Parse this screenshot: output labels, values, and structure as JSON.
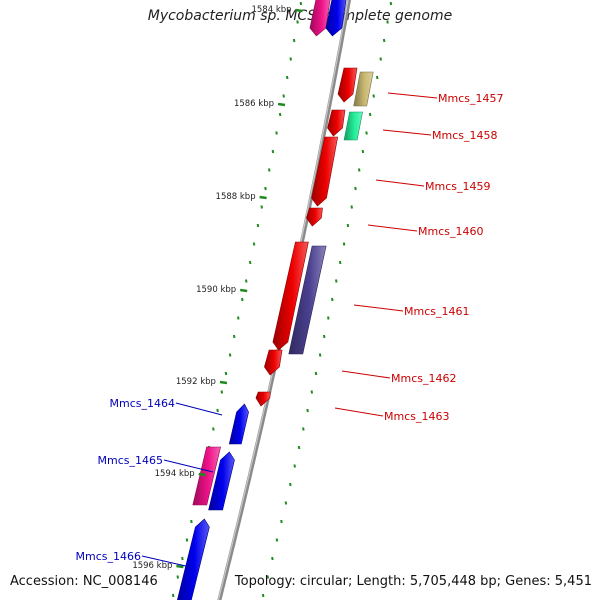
{
  "title": "Mycobacterium sp. MCS, complete genome",
  "footer": {
    "accession": "Accession: NC_008146",
    "summary": "Topology: circular; Length: 5,705,448 bp; Genes: 5,451"
  },
  "colors": {
    "backbone": "#8a8a8a",
    "tick": "#1f8a1f",
    "forward_label": "#cc0000",
    "reverse_label": "#0000bb",
    "red_gene": "#ee0000",
    "blue_gene": "#0000ee",
    "magenta_gene": "#ee1188",
    "olive_gene": "#c8b870",
    "teal_gene": "#22ee99",
    "purple_gene": "#4a4090"
  },
  "scale_labels": [
    "1584 kbp",
    "1586 kbp",
    "1588 kbp",
    "1590 kbp",
    "1592 kbp",
    "1594 kbp",
    "1596 kbp"
  ],
  "gene_labels": [
    {
      "name": "Mmcs_1457",
      "strand": "forward"
    },
    {
      "name": "Mmcs_1458",
      "strand": "forward"
    },
    {
      "name": "Mmcs_1459",
      "strand": "forward"
    },
    {
      "name": "Mmcs_1460",
      "strand": "forward"
    },
    {
      "name": "Mmcs_1461",
      "strand": "forward"
    },
    {
      "name": "Mmcs_1462",
      "strand": "forward"
    },
    {
      "name": "Mmcs_1463",
      "strand": "forward"
    },
    {
      "name": "Mmcs_1464",
      "strand": "reverse"
    },
    {
      "name": "Mmcs_1465",
      "strand": "reverse"
    },
    {
      "name": "Mmcs_1466",
      "strand": "reverse"
    }
  ],
  "features": [
    {
      "kind": "cds",
      "color": "magenta_gene"
    },
    {
      "kind": "cds",
      "color": "blue_gene"
    },
    {
      "kind": "cds",
      "color": "red_gene"
    },
    {
      "kind": "cds",
      "color": "olive_gene"
    },
    {
      "kind": "cds",
      "color": "red_gene"
    },
    {
      "kind": "cds",
      "color": "teal_gene"
    },
    {
      "kind": "cds",
      "color": "red_gene"
    },
    {
      "kind": "cds",
      "color": "red_gene"
    },
    {
      "kind": "cds",
      "color": "red_gene"
    },
    {
      "kind": "cds",
      "color": "purple_gene"
    },
    {
      "kind": "cds",
      "color": "red_gene"
    },
    {
      "kind": "cds",
      "color": "red_gene"
    },
    {
      "kind": "cds",
      "color": "blue_gene"
    },
    {
      "kind": "cds",
      "color": "magenta_gene"
    },
    {
      "kind": "cds",
      "color": "blue_gene"
    },
    {
      "kind": "cds",
      "color": "blue_gene"
    }
  ]
}
